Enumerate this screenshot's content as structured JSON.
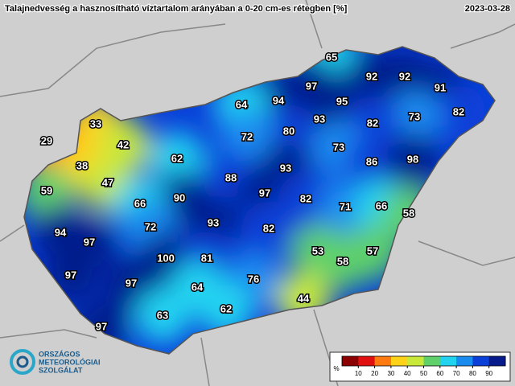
{
  "header": {
    "title": "Talajnedvesség a hasznosítható víztartalom arányában a 0-20 cm-es rétegben [%]",
    "date": "2023-03-28"
  },
  "stations": [
    65,
    92,
    92,
    91,
    97,
    94,
    95,
    64,
    82,
    73,
    93,
    82,
    80,
    33,
    72,
    29,
    42,
    73,
    62,
    86,
    98,
    93,
    38,
    88,
    47,
    59,
    97,
    90,
    82,
    66,
    71,
    66,
    58,
    93,
    72,
    82,
    94,
    97,
    53,
    57,
    100,
    81,
    58,
    97,
    76,
    97,
    64,
    44,
    62,
    63,
    97
  ],
  "legend": {
    "unit": "%",
    "lim": [
      0,
      100
    ],
    "ticks": [
      10,
      20,
      30,
      40,
      50,
      60,
      70,
      80,
      90
    ],
    "colors": [
      "#8b0000",
      "#e01010",
      "#ff7a10",
      "#ffd21a",
      "#c8e83a",
      "#5fd06a",
      "#22d3f0",
      "#1a8cf0",
      "#0a3fd8",
      "#061a8c"
    ]
  },
  "logo": {
    "line1": "ORSZÁGOS",
    "line2": "METEOROLÓGIAI",
    "line3": "SZOLGÁLAT"
  }
}
